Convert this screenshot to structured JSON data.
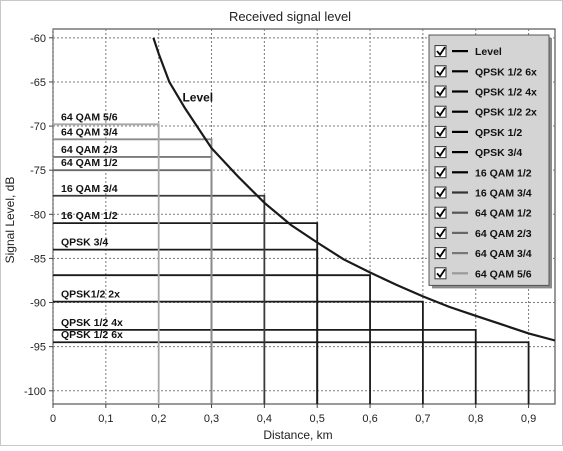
{
  "chart_data": {
    "type": "line",
    "title": "Received signal level",
    "xlabel": "Distance, km",
    "ylabel": "Signal Level, dB",
    "xlim": [
      0,
      0.95
    ],
    "ylim": [
      -101.5,
      -59
    ],
    "x_ticks": [
      0,
      0.1,
      0.2,
      0.3,
      0.4,
      0.5,
      0.6,
      0.7,
      0.8,
      0.9
    ],
    "x_tick_labels": [
      "0",
      "0,1",
      "0,2",
      "0,3",
      "0,4",
      "0,5",
      "0,6",
      "0,7",
      "0,8",
      "0,9"
    ],
    "y_ticks": [
      -60,
      -65,
      -70,
      -75,
      -80,
      -85,
      -90,
      -95,
      -100
    ],
    "y_tick_labels": [
      "-60",
      "-65",
      "-70",
      "-75",
      "-80",
      "-85",
      "-90",
      "-95",
      "-100"
    ],
    "grid": true,
    "legend_position": "top-right",
    "curve": {
      "name": "Level",
      "color": "#1a1a1a",
      "x": [
        0.19,
        0.2,
        0.22,
        0.25,
        0.3,
        0.35,
        0.4,
        0.45,
        0.5,
        0.55,
        0.6,
        0.65,
        0.7,
        0.75,
        0.8,
        0.85,
        0.9,
        0.95
      ],
      "y": [
        -60,
        -61.8,
        -65,
        -68,
        -72.5,
        -75.7,
        -78.7,
        -81.2,
        -83.2,
        -85.1,
        -86.6,
        -88.0,
        -89.3,
        -90.5,
        -91.5,
        -92.5,
        -93.5,
        -94.3
      ]
    },
    "thresholds": [
      {
        "name": "QPSK 1/2 6x",
        "label": "QPSK 1/2 6x",
        "level": -94.5,
        "range": 0.9,
        "color": "#1a1a1a"
      },
      {
        "name": "QPSK 1/2 4x",
        "label": "QPSK 1/2 4x",
        "level": -93.1,
        "range": 0.8,
        "color": "#1a1a1a"
      },
      {
        "name": "QPSK 1/2 2x",
        "label": "QPSK1/2 2x",
        "level": -89.9,
        "range": 0.7,
        "color": "#1a1a1a"
      },
      {
        "name": "QPSK 1/2",
        "label": "",
        "level": -86.9,
        "range": 0.6,
        "color": "#1a1a1a"
      },
      {
        "name": "QPSK 3/4",
        "label": "QPSK 3/4",
        "level": -84.0,
        "range": 0.5,
        "color": "#1a1a1a"
      },
      {
        "name": "16 QAM 1/2",
        "label": "16 QAM 1/2",
        "level": -81.0,
        "range": 0.5,
        "color": "#1a1a1a"
      },
      {
        "name": "16 QAM 3/4",
        "label": "16 QAM 3/4",
        "level": -77.9,
        "range": 0.4,
        "color": "#3a3a3a"
      },
      {
        "name": "64 QAM 1/2",
        "label": "64 QAM 1/2",
        "level": -75.0,
        "range": 0.3,
        "color": "#6a6a6a"
      },
      {
        "name": "64 QAM 2/3",
        "label": "64 QAM 2/3",
        "level": -73.5,
        "range": 0.3,
        "color": "#7a7a7a"
      },
      {
        "name": "64 QAM 3/4",
        "label": "64 QAM 3/4",
        "level": -71.5,
        "range": 0.3,
        "color": "#8a8a8a"
      },
      {
        "name": "64 QAM 5/6",
        "label": "64 QAM 5/6",
        "level": -69.8,
        "range": 0.2,
        "color": "#a8a8a8"
      }
    ],
    "legend": [
      {
        "label": "Level",
        "checked": true,
        "color": "#000000"
      },
      {
        "label": "QPSK 1/2 6x",
        "checked": true,
        "color": "#000000"
      },
      {
        "label": "QPSK 1/2 4x",
        "checked": true,
        "color": "#000000"
      },
      {
        "label": "QPSK 1/2 2x",
        "checked": true,
        "color": "#000000"
      },
      {
        "label": "QPSK 1/2",
        "checked": true,
        "color": "#000000"
      },
      {
        "label": "QPSK 3/4",
        "checked": true,
        "color": "#000000"
      },
      {
        "label": "16 QAM 1/2",
        "checked": true,
        "color": "#000000"
      },
      {
        "label": "16 QAM 3/4",
        "checked": true,
        "color": "#333333"
      },
      {
        "label": "64 QAM 1/2",
        "checked": true,
        "color": "#555555"
      },
      {
        "label": "64 QAM 2/3",
        "checked": true,
        "color": "#666666"
      },
      {
        "label": "64 QAM 3/4",
        "checked": true,
        "color": "#777777"
      },
      {
        "label": "64 QAM 5/6",
        "checked": true,
        "color": "#999999"
      }
    ],
    "annotations": [
      {
        "text": "Level",
        "x": 0.245,
        "y": -67.2
      }
    ]
  }
}
